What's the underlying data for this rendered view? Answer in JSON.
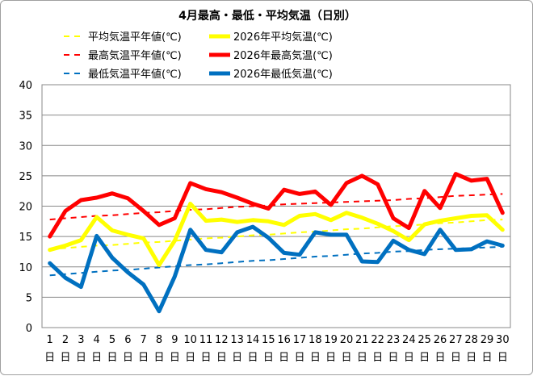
{
  "chart_data": {
    "type": "line",
    "title": "4月最高・最低・平均気温（日別）",
    "ylim": [
      0,
      40
    ],
    "yticks": [
      0,
      5,
      10,
      15,
      20,
      25,
      30,
      35,
      40
    ],
    "grid": "horizontal",
    "legend_position": "top",
    "day_suffix": "日",
    "x": [
      1,
      2,
      3,
      4,
      5,
      6,
      7,
      8,
      9,
      10,
      11,
      12,
      13,
      14,
      15,
      16,
      17,
      18,
      19,
      20,
      21,
      22,
      23,
      24,
      25,
      26,
      27,
      28,
      29,
      30
    ],
    "series": [
      {
        "name": "平均気温平年値(℃)",
        "color": "#ffff00",
        "style": "dashed",
        "values": [
          12.9,
          13.1,
          13.3,
          13.5,
          13.6,
          13.8,
          14.0,
          14.1,
          14.3,
          14.5,
          14.7,
          14.8,
          15.0,
          15.2,
          15.3,
          15.5,
          15.7,
          15.8,
          16.0,
          16.2,
          16.3,
          16.5,
          16.7,
          16.8,
          17.0,
          17.2,
          17.3,
          17.5,
          17.7,
          17.8
        ]
      },
      {
        "name": "2026年平均気温(℃)",
        "color": "#ffff00",
        "style": "solid",
        "values": [
          12.8,
          13.5,
          14.4,
          18.2,
          16.0,
          15.3,
          14.7,
          10.3,
          14.3,
          20.4,
          17.6,
          17.8,
          17.4,
          17.7,
          17.5,
          16.9,
          18.4,
          18.7,
          17.7,
          18.9,
          18.1,
          17.1,
          15.9,
          14.4,
          17.0,
          17.6,
          18.0,
          18.4,
          18.5,
          16.1
        ]
      },
      {
        "name": "最高気温平年値(℃)",
        "color": "#ff0000",
        "style": "dashed",
        "values": [
          17.8,
          18.0,
          18.2,
          18.4,
          18.5,
          18.7,
          18.9,
          19.0,
          19.2,
          19.4,
          19.5,
          19.7,
          19.9,
          20.0,
          20.1,
          20.3,
          20.4,
          20.5,
          20.6,
          20.7,
          20.8,
          20.9,
          21.0,
          21.2,
          21.3,
          21.5,
          21.7,
          21.8,
          21.9,
          22.0
        ]
      },
      {
        "name": "2026年最高気温(℃)",
        "color": "#ff0000",
        "style": "solid",
        "values": [
          15.0,
          19.2,
          21.0,
          21.4,
          22.1,
          21.3,
          19.2,
          16.9,
          18.0,
          23.8,
          22.8,
          22.3,
          21.4,
          20.4,
          19.6,
          22.7,
          22.0,
          22.4,
          20.2,
          23.8,
          25.0,
          23.6,
          18.0,
          16.4,
          22.5,
          19.7,
          25.3,
          24.2,
          24.5,
          18.9
        ]
      },
      {
        "name": "最低気温平年値(℃)",
        "color": "#0070c0",
        "style": "dashed",
        "values": [
          8.6,
          8.8,
          9.0,
          9.2,
          9.4,
          9.5,
          9.7,
          9.9,
          10.1,
          10.3,
          10.4,
          10.6,
          10.8,
          11.0,
          11.1,
          11.3,
          11.5,
          11.7,
          11.8,
          12.0,
          12.2,
          12.3,
          12.5,
          12.6,
          12.8,
          12.9,
          13.0,
          13.1,
          13.2,
          13.3
        ]
      },
      {
        "name": "2026年最低気温(℃)",
        "color": "#0070c0",
        "style": "solid",
        "values": [
          10.6,
          8.2,
          6.7,
          15.1,
          11.5,
          9.1,
          7.1,
          2.7,
          8.4,
          16.1,
          12.8,
          12.4,
          15.7,
          16.6,
          14.8,
          12.3,
          12.0,
          15.7,
          15.3,
          15.3,
          10.9,
          10.8,
          14.3,
          12.8,
          12.1,
          16.1,
          12.8,
          12.9,
          14.2,
          13.5
        ]
      }
    ]
  }
}
